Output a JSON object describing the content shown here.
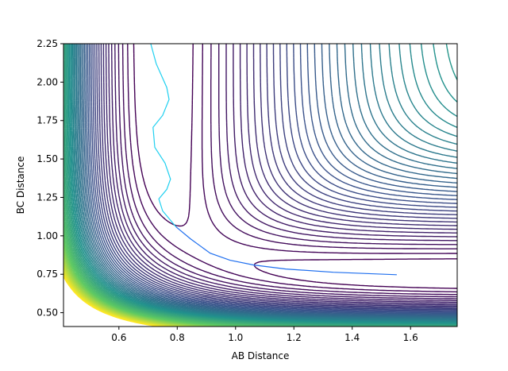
{
  "chart_data": {
    "type": "contour",
    "x_label": "AB Distance",
    "y_label": "BC Distance",
    "xlim": [
      0.41,
      1.76
    ],
    "ylim": [
      0.41,
      2.25
    ],
    "xticks": [
      0.6,
      0.8,
      {
        "value": 1,
        "label": "1.0"
      },
      1.2,
      1.4,
      1.6
    ],
    "yticks": [
      {
        "value": 0.5,
        "label": "0.50"
      },
      0.75,
      {
        "value": 1,
        "label": "1.00"
      },
      1.25,
      {
        "value": 1.5,
        "label": "1.50"
      },
      1.75,
      {
        "value": 2,
        "label": "2.00"
      },
      2.25
    ],
    "colormap": [
      "#440154",
      "#3b528b",
      "#21918c",
      "#5ec962",
      "#fde725"
    ],
    "levels": [
      -440,
      -430,
      -420,
      -410,
      -400,
      -390,
      -380,
      -370,
      -360,
      -350,
      -340,
      -330,
      -320,
      -310,
      -300,
      -290,
      -280,
      -270,
      -260,
      -250,
      -240,
      -230,
      -220,
      -210,
      -200,
      -190,
      -180,
      -170,
      -160,
      -150,
      -140,
      -130,
      -120,
      -110,
      -100,
      -90,
      -80,
      -70,
      -60,
      -50,
      -40,
      -30,
      -20,
      -10,
      0,
      10,
      20,
      30,
      40,
      50,
      60,
      70,
      80,
      90,
      100,
      110,
      120,
      130,
      140,
      150,
      160
    ],
    "series": [
      {
        "color": "#1fd0f0",
        "x": [
          0.709,
          0.728,
          0.764,
          0.772,
          0.75,
          0.717,
          0.723,
          0.758,
          0.777,
          0.764,
          0.737,
          0.75,
          0.796
        ],
        "y": [
          2.25,
          2.12,
          1.965,
          1.887,
          1.784,
          1.706,
          1.576,
          1.473,
          1.369,
          1.302,
          1.24,
          1.162,
          1.058
        ]
      },
      {
        "color": "#1f6fef",
        "x": [
          0.796,
          0.845,
          0.913,
          0.981,
          1.063,
          1.172,
          1.335,
          1.553
        ],
        "y": [
          1.058,
          0.981,
          0.887,
          0.841,
          0.81,
          0.784,
          0.763,
          0.747
        ]
      }
    ]
  }
}
